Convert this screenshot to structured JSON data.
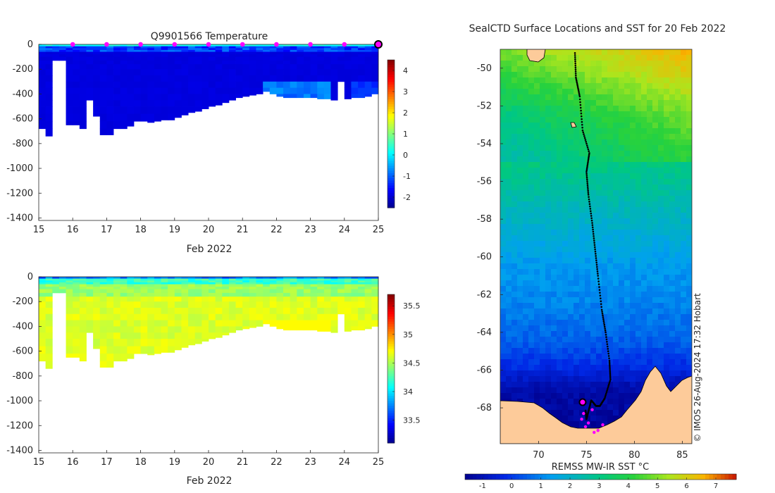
{
  "panels": {
    "temperature": {
      "title": "Q9901566  Temperature",
      "xlabel": "Feb 2022",
      "colorbar_ticks": [
        "4",
        "3",
        "2",
        "1",
        "0",
        "-1",
        "-2"
      ]
    },
    "salinity": {
      "xlabel": "Feb 2022",
      "colorbar_ticks": [
        "35.5",
        "35",
        "34.5",
        "34",
        "33.5"
      ]
    },
    "map": {
      "title": "SealCTD Surface Locations and SST for 20 Feb 2022",
      "colorbar_label": "REMSS MW-IR SST °C",
      "colorbar_ticks": [
        "-1",
        "0",
        "1",
        "2",
        "3",
        "4",
        "5",
        "6",
        "7"
      ],
      "credit": "© IMOS 26-Aug-2024 17:32 Hobart"
    }
  },
  "colors": {
    "deep_water": "#00008f",
    "land": "#fdcb9a",
    "profile_marker": "#ff00ff",
    "track": "#000000"
  },
  "chart_data": [
    {
      "type": "heatmap",
      "name": "temperature-section",
      "title": "Q9901566  Temperature",
      "xlabel": "Feb 2022",
      "x_ticks": [
        "15",
        "16",
        "17",
        "18",
        "19",
        "20",
        "21",
        "22",
        "23",
        "24",
        "25"
      ],
      "y_ticks": [
        "0",
        "-200",
        "-400",
        "-600",
        "-800",
        "-1000",
        "-1200",
        "-1400"
      ],
      "xlim": [
        15,
        25
      ],
      "ylim": [
        -1420,
        0
      ],
      "color_range": [
        -2.5,
        4.5
      ],
      "colorbar_ticks": [
        "4",
        "3",
        "2",
        "1",
        "0",
        "-1",
        "-2"
      ],
      "profile_days": [
        16,
        17,
        18,
        19,
        20,
        21,
        22,
        23,
        24,
        25
      ],
      "dive_days": [
        15.0,
        15.2,
        15.4,
        15.6,
        15.8,
        16.0,
        16.2,
        16.4,
        16.6,
        16.8,
        17.0,
        17.2,
        17.4,
        17.6,
        17.8,
        18.0,
        18.2,
        18.4,
        18.6,
        18.8,
        19.0,
        19.2,
        19.4,
        19.6,
        19.8,
        20.0,
        20.2,
        20.4,
        20.6,
        20.8,
        21.0,
        21.2,
        21.4,
        21.6,
        21.8,
        22.0,
        22.2,
        22.4,
        22.6,
        22.8,
        23.0,
        23.2,
        23.4,
        23.6,
        23.8,
        24.0,
        24.2,
        24.4,
        24.6,
        24.8,
        25.0
      ],
      "dive_depths": [
        -680,
        -740,
        -130,
        -130,
        -650,
        -650,
        -680,
        -450,
        -580,
        -730,
        -730,
        -680,
        -680,
        -660,
        -620,
        -620,
        -630,
        -620,
        -610,
        -610,
        -590,
        -570,
        -550,
        -540,
        -520,
        -500,
        -490,
        -470,
        -450,
        -430,
        -420,
        -410,
        -400,
        -380,
        -400,
        -420,
        -430,
        -430,
        -430,
        -430,
        -430,
        -440,
        -440,
        -450,
        -300,
        -440,
        -430,
        -430,
        -420,
        -400,
        -390
      ],
      "notes": "Cold (approx. -1.8 °C) water column below ~40 m with a warmer ~0 °C surface layer; warmer patches near 400 m around 22–23 Feb."
    },
    {
      "type": "heatmap",
      "name": "salinity-section",
      "xlabel": "Feb 2022",
      "x_ticks": [
        "15",
        "16",
        "17",
        "18",
        "19",
        "20",
        "21",
        "22",
        "23",
        "24",
        "25"
      ],
      "y_ticks": [
        "0",
        "-200",
        "-400",
        "-600",
        "-800",
        "-1000",
        "-1200",
        "-1400"
      ],
      "xlim": [
        15,
        25
      ],
      "ylim": [
        -1420,
        0
      ],
      "color_range": [
        33.1,
        35.7
      ],
      "colorbar_ticks": [
        "35.5",
        "35",
        "34.5",
        "34",
        "33.5"
      ],
      "notes": "Fresh (~33.8) surface layer increasing to ~34.6–34.7 at depth; same dive envelope as temperature section."
    },
    {
      "type": "scatter",
      "name": "sst-map",
      "title": "SealCTD Surface Locations and SST for 20 Feb 2022",
      "x_ticks": [
        "70",
        "75",
        "80",
        "85"
      ],
      "y_ticks": [
        "-50",
        "-52",
        "-54",
        "-56",
        "-58",
        "-60",
        "-62",
        "-64",
        "-66",
        "-68"
      ],
      "xlim": [
        66,
        86
      ],
      "ylim": [
        -69.9,
        -49
      ],
      "colorbar_label": "REMSS MW-IR SST °C",
      "colorbar_range": [
        -1.6,
        7.7
      ],
      "colorbar_ticks": [
        "-1",
        "0",
        "1",
        "2",
        "3",
        "4",
        "5",
        "6",
        "7"
      ],
      "sst_bands": [
        {
          "lat": -49.0,
          "sst": 5.6
        },
        {
          "lat": -51.0,
          "sst": 4.6
        },
        {
          "lat": -52.5,
          "sst": 3.8
        },
        {
          "lat": -54.5,
          "sst": 3.2
        },
        {
          "lat": -56.5,
          "sst": 2.6
        },
        {
          "lat": -58.5,
          "sst": 1.9
        },
        {
          "lat": -60.5,
          "sst": 1.3
        },
        {
          "lat": -62.5,
          "sst": 1.0
        },
        {
          "lat": -64.5,
          "sst": 0.5
        },
        {
          "lat": -66.0,
          "sst": -0.3
        },
        {
          "lat": -67.0,
          "sst": -1.2
        },
        {
          "lat": -69.9,
          "sst": -1.5
        }
      ],
      "track": {
        "lon": [
          73.8,
          73.9,
          74.3,
          74.6,
          75.3,
          75.0,
          75.2,
          75.6,
          75.9,
          76.2,
          76.6,
          77.0,
          77.4,
          77.5,
          76.9,
          76.4,
          76.0,
          75.5,
          75.2,
          75.0,
          74.9
        ],
        "lat": [
          -49.2,
          -50.5,
          -51.5,
          -53.3,
          -54.5,
          -55.5,
          -56.7,
          -58.2,
          -59.6,
          -61.0,
          -62.8,
          -64.0,
          -65.5,
          -66.5,
          -67.5,
          -67.9,
          -67.9,
          -67.6,
          -68.2,
          -68.6,
          -68.1
        ]
      },
      "latest_position": {
        "lon": 74.6,
        "lat": -67.7
      },
      "profile_positions": {
        "lon": [
          74.5,
          74.9,
          75.2,
          75.8,
          76.2,
          76.7,
          74.7,
          75.6
        ],
        "lat": [
          -68.6,
          -69.0,
          -68.8,
          -69.3,
          -69.2,
          -68.9,
          -68.3,
          -68.1
        ]
      }
    }
  ]
}
